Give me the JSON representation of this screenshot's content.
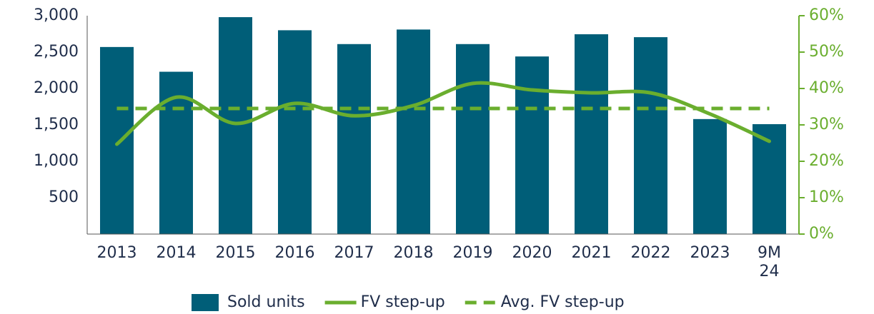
{
  "chart_data": {
    "type": "bar-line",
    "categories": [
      "2013",
      "2014",
      "2015",
      "2016",
      "2017",
      "2018",
      "2019",
      "2020",
      "2021",
      "2022",
      "2023",
      "9M 24"
    ],
    "series": [
      {
        "name": "Sold units",
        "type": "bar",
        "color": "#005e78",
        "values": [
          2570,
          2230,
          2980,
          2800,
          2610,
          2810,
          2610,
          2440,
          2745,
          2705,
          1580,
          1510
        ]
      },
      {
        "name": "FV step-up",
        "type": "line",
        "axis": "y2",
        "color": "#6aae2e",
        "values": [
          24.7,
          37.6,
          30.4,
          35.9,
          32.5,
          35.3,
          41.4,
          39.6,
          38.8,
          38.8,
          33,
          25.5
        ]
      },
      {
        "name": "Avg. FV step-up",
        "type": "dashed-line",
        "axis": "y2",
        "color": "#6aae2e",
        "values": [
          34.5,
          34.5,
          34.5,
          34.5,
          34.5,
          34.5,
          34.5,
          34.5,
          34.5,
          34.5,
          34.5,
          34.5
        ]
      }
    ],
    "ylim": [
      0,
      3000
    ],
    "yticks": [
      500,
      {
        "value": 1000,
        "label": "1,000"
      },
      {
        "value": 1500,
        "label": "1,500"
      },
      {
        "value": 2000,
        "label": "2,000"
      },
      {
        "value": 2500,
        "label": "2,500"
      },
      {
        "value": 3000,
        "label": "3,000"
      }
    ],
    "y2lim": [
      0,
      60
    ],
    "y2ticks": [
      {
        "value": 0,
        "label": "0%"
      },
      {
        "value": 10,
        "label": "10%"
      },
      {
        "value": 20,
        "label": "20%"
      },
      {
        "value": 30,
        "label": "30%"
      },
      {
        "value": 40,
        "label": "40%"
      },
      {
        "value": 50,
        "label": "50%"
      },
      {
        "value": 60,
        "label": "60%"
      }
    ],
    "legend": "bottom"
  }
}
